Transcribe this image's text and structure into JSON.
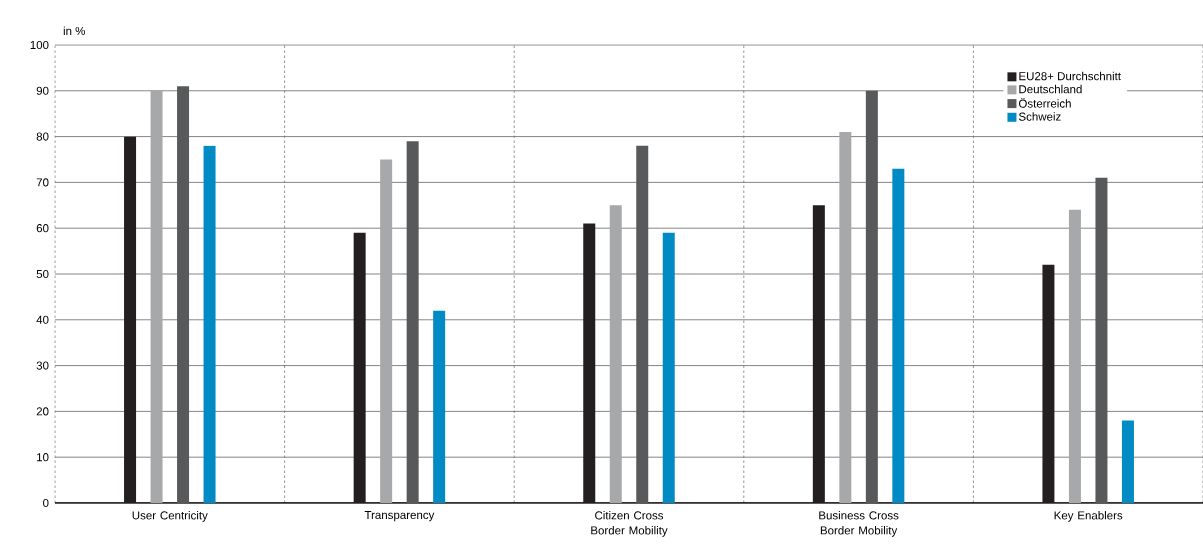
{
  "chart_data": {
    "type": "bar",
    "ylabel": "in %",
    "categories": [
      "User Centricity",
      "Transparency",
      "Citizen Cross Border Mobility",
      "Business Cross Border Mobility",
      "Key Enablers"
    ],
    "series": [
      {
        "name": "EU28+ Durchschnitt",
        "color": "#231f20",
        "values": [
          80,
          59,
          61,
          65,
          52
        ]
      },
      {
        "name": "Deutschland",
        "color": "#a7a8aa",
        "values": [
          90,
          75,
          65,
          81,
          64
        ]
      },
      {
        "name": "Österreich",
        "color": "#58595b",
        "values": [
          91,
          79,
          78,
          90,
          71
        ]
      },
      {
        "name": "Schweiz",
        "color": "#008bc4",
        "values": [
          78,
          42,
          59,
          73,
          18
        ]
      }
    ],
    "ylim": [
      0,
      100
    ],
    "yticks": [
      0,
      10,
      20,
      30,
      40,
      50,
      60,
      70,
      80,
      90,
      100
    ],
    "grid": true,
    "legend": "top right"
  }
}
